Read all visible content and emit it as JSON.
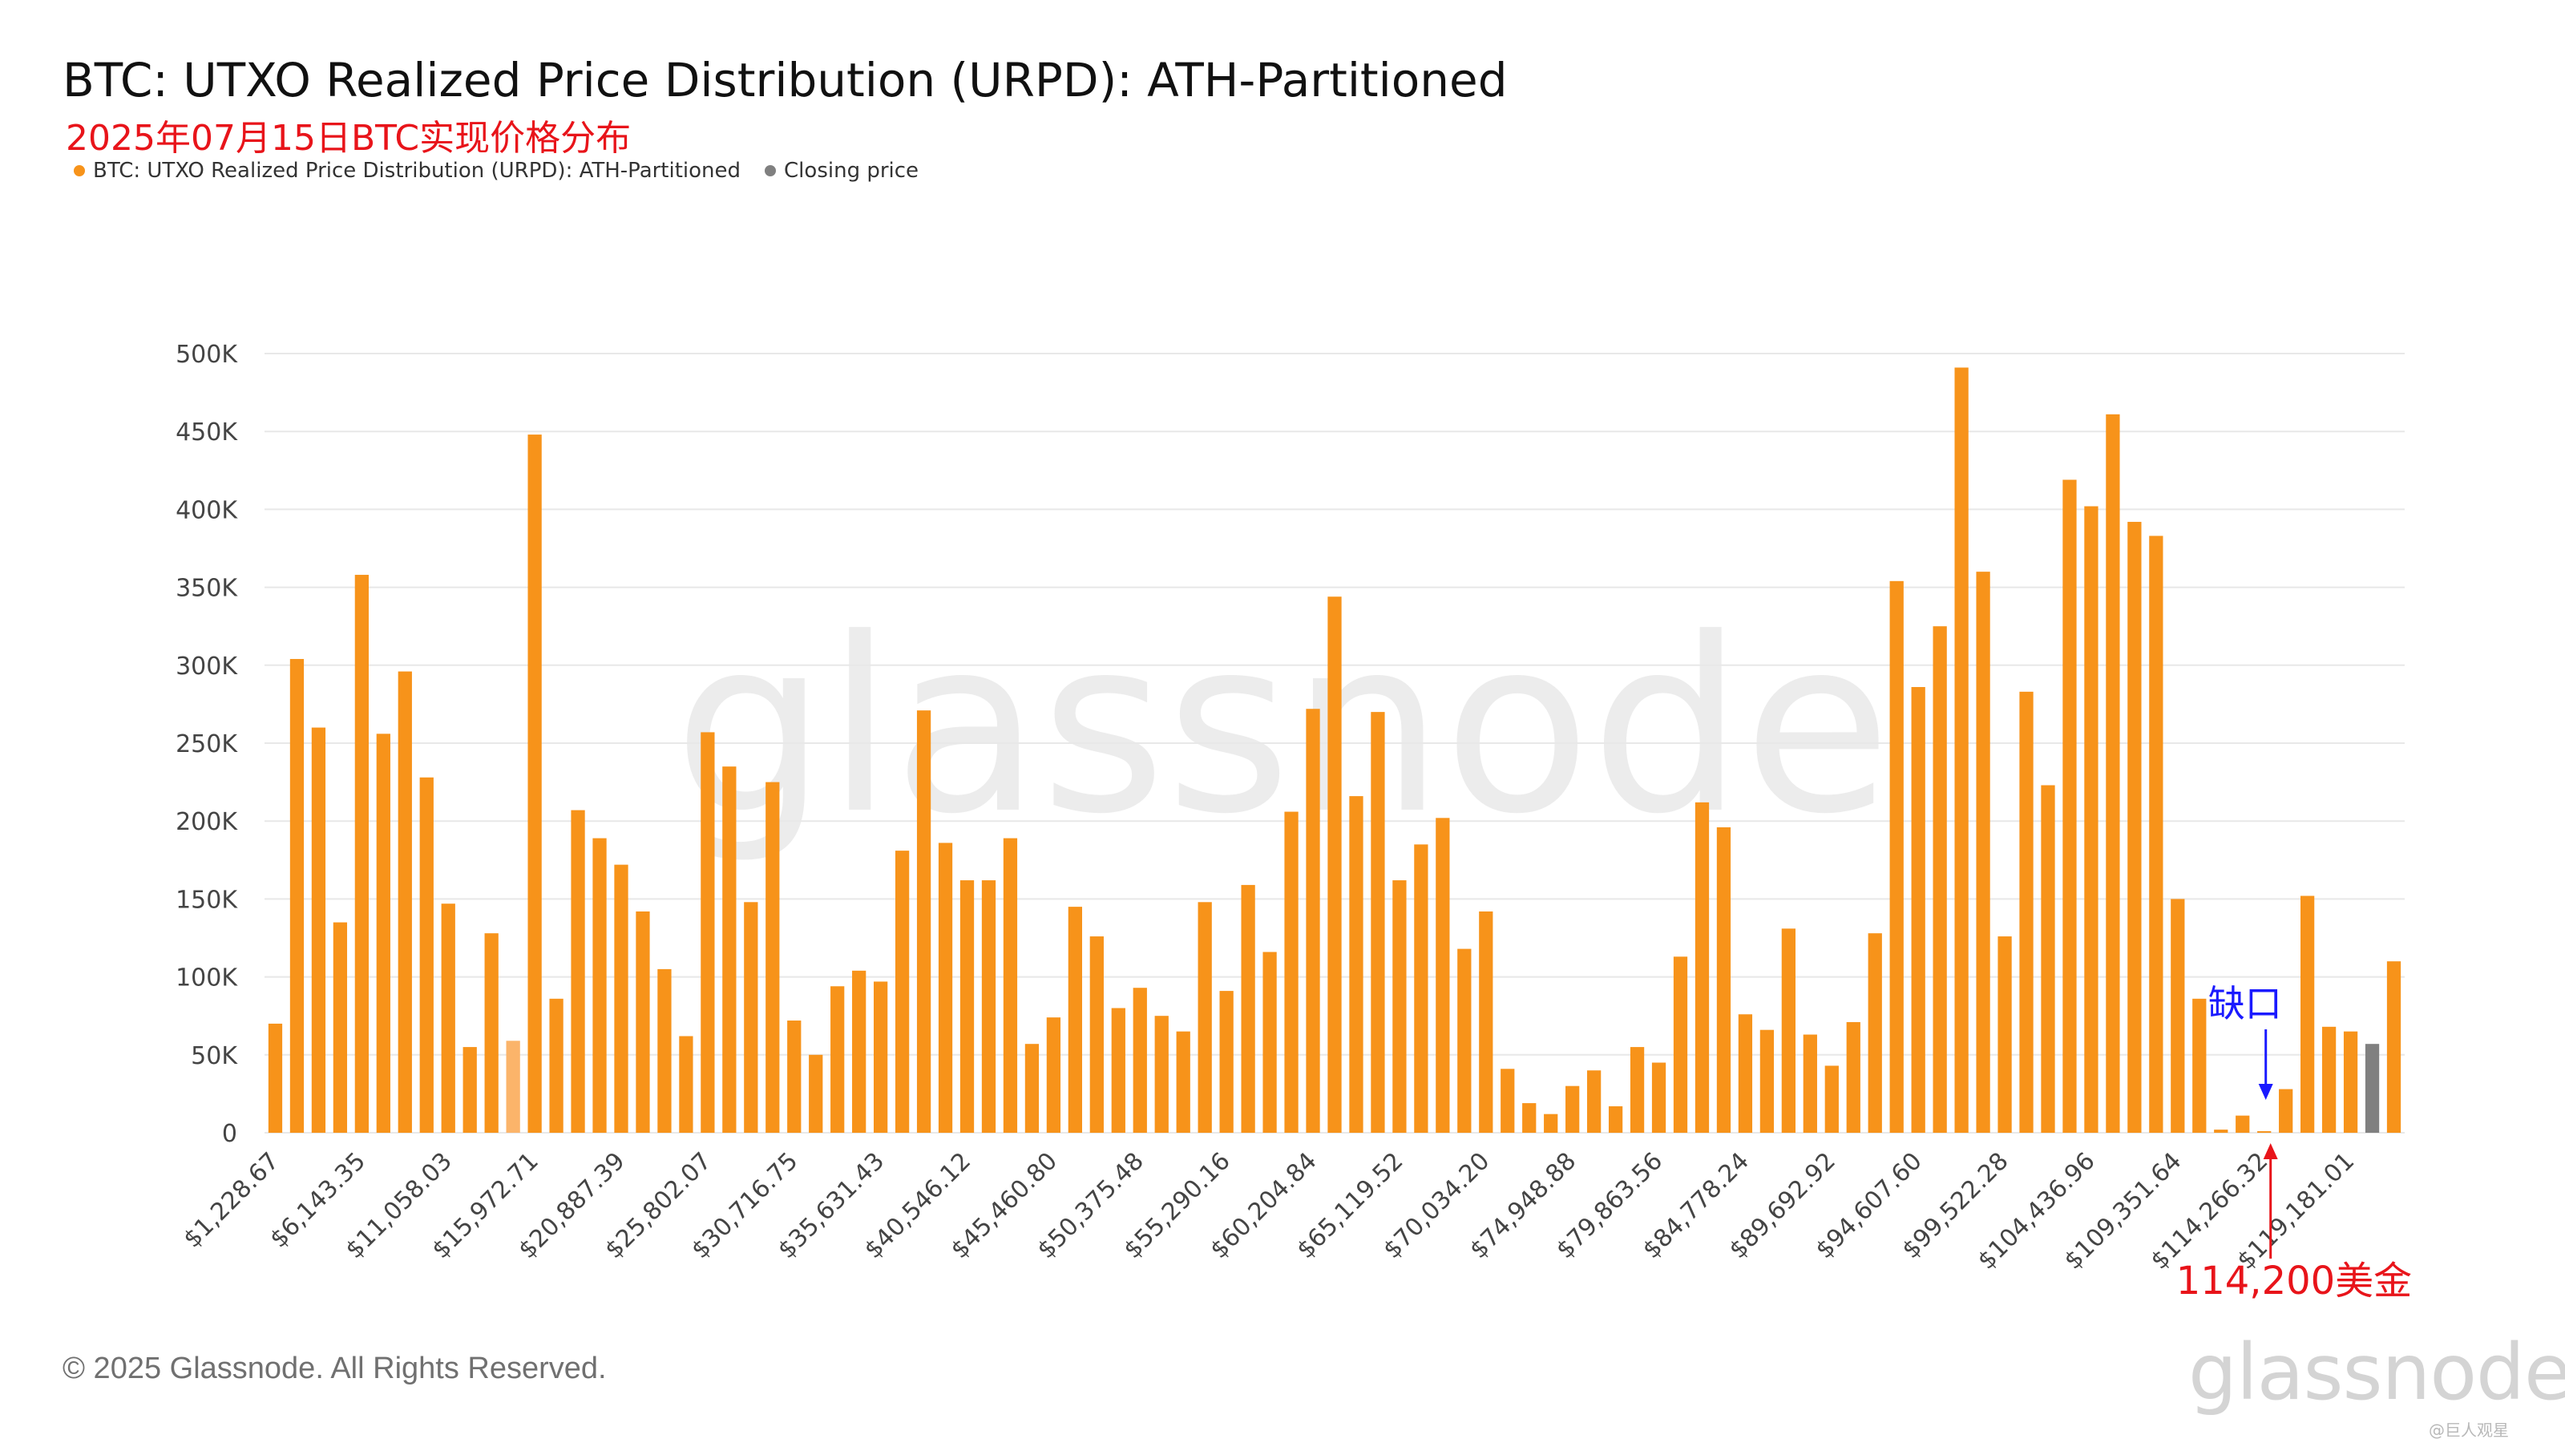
{
  "header": {
    "title": "BTC: UTXO Realized Price Distribution (URPD): ATH-Partitioned",
    "subtitle_cn": "2025年07月15日BTC实现价格分布"
  },
  "legend": {
    "items": [
      {
        "label": "BTC: UTXO Realized Price Distribution (URPD): ATH-Partitioned",
        "color": "#f7931a"
      },
      {
        "label": "Closing price",
        "color": "#808080"
      }
    ]
  },
  "colors": {
    "bar": "#f7931a",
    "bar_light": "#fbb46a",
    "closing": "#808080",
    "grid": "#e8e8e8",
    "annotation_blue": "#1a1aff",
    "annotation_red": "#e8141a"
  },
  "footer": {
    "copyright": "© 2025 Glassnode. All Rights Reserved.",
    "logo": "glassnode",
    "credit": "@巨人观星"
  },
  "watermark": "glassnode",
  "chart_data": {
    "type": "bar",
    "ylim": [
      0,
      500000
    ],
    "y_ticks": [
      {
        "value": 0,
        "label": "0"
      },
      {
        "value": 50000,
        "label": "50K"
      },
      {
        "value": 100000,
        "label": "100K"
      },
      {
        "value": 150000,
        "label": "150K"
      },
      {
        "value": 200000,
        "label": "200K"
      },
      {
        "value": 250000,
        "label": "250K"
      },
      {
        "value": 300000,
        "label": "300K"
      },
      {
        "value": 350000,
        "label": "350K"
      },
      {
        "value": 400000,
        "label": "400K"
      },
      {
        "value": 450000,
        "label": "450K"
      },
      {
        "value": 500000,
        "label": "500K"
      }
    ],
    "x_tick_labels": [
      {
        "index": 0,
        "label": "$1,228.67"
      },
      {
        "index": 4,
        "label": "$6,143.35"
      },
      {
        "index": 8,
        "label": "$11,058.03"
      },
      {
        "index": 12,
        "label": "$15,972.71"
      },
      {
        "index": 16,
        "label": "$20,887.39"
      },
      {
        "index": 20,
        "label": "$25,802.07"
      },
      {
        "index": 24,
        "label": "$30,716.75"
      },
      {
        "index": 28,
        "label": "$35,631.43"
      },
      {
        "index": 32,
        "label": "$40,546.12"
      },
      {
        "index": 36,
        "label": "$45,460.80"
      },
      {
        "index": 40,
        "label": "$50,375.48"
      },
      {
        "index": 44,
        "label": "$55,290.16"
      },
      {
        "index": 48,
        "label": "$60,204.84"
      },
      {
        "index": 52,
        "label": "$65,119.52"
      },
      {
        "index": 56,
        "label": "$70,034.20"
      },
      {
        "index": 60,
        "label": "$74,948.88"
      },
      {
        "index": 64,
        "label": "$79,863.56"
      },
      {
        "index": 68,
        "label": "$84,778.24"
      },
      {
        "index": 72,
        "label": "$89,692.92"
      },
      {
        "index": 76,
        "label": "$94,607.60"
      },
      {
        "index": 80,
        "label": "$99,522.28"
      },
      {
        "index": 84,
        "label": "$104,436.96"
      },
      {
        "index": 88,
        "label": "$109,351.64"
      },
      {
        "index": 92,
        "label": "$114,266.32"
      },
      {
        "index": 96,
        "label": "$119,181.01"
      }
    ],
    "values": [
      70000,
      304000,
      260000,
      135000,
      358000,
      256000,
      296000,
      228000,
      147000,
      55000,
      128000,
      59000,
      448000,
      86000,
      207000,
      189000,
      172000,
      142000,
      105000,
      62000,
      257000,
      235000,
      148000,
      225000,
      72000,
      50000,
      94000,
      104000,
      97000,
      181000,
      271000,
      186000,
      162000,
      162000,
      189000,
      57000,
      74000,
      145000,
      126000,
      80000,
      93000,
      75000,
      65000,
      148000,
      91000,
      159000,
      116000,
      206000,
      272000,
      344000,
      216000,
      270000,
      162000,
      185000,
      202000,
      118000,
      142000,
      41000,
      19000,
      12000,
      30000,
      40000,
      17000,
      55000,
      45000,
      113000,
      212000,
      196000,
      76000,
      66000,
      131000,
      63000,
      43000,
      71000,
      128000,
      354000,
      286000,
      325000,
      491000,
      360000,
      126000,
      283000,
      223000,
      419000,
      402000,
      461000,
      392000,
      383000,
      150000,
      86000,
      2000,
      11000,
      1000,
      28000,
      152000,
      68000,
      65000,
      57000,
      110000
    ],
    "highlight_light_index": 11,
    "closing_price_index": 97,
    "annotations": [
      {
        "text": "缺口",
        "color": "#1a1aff",
        "bar_index": 92
      },
      {
        "text": "114,200美金",
        "color": "#e8141a",
        "bar_index": 92
      }
    ]
  }
}
